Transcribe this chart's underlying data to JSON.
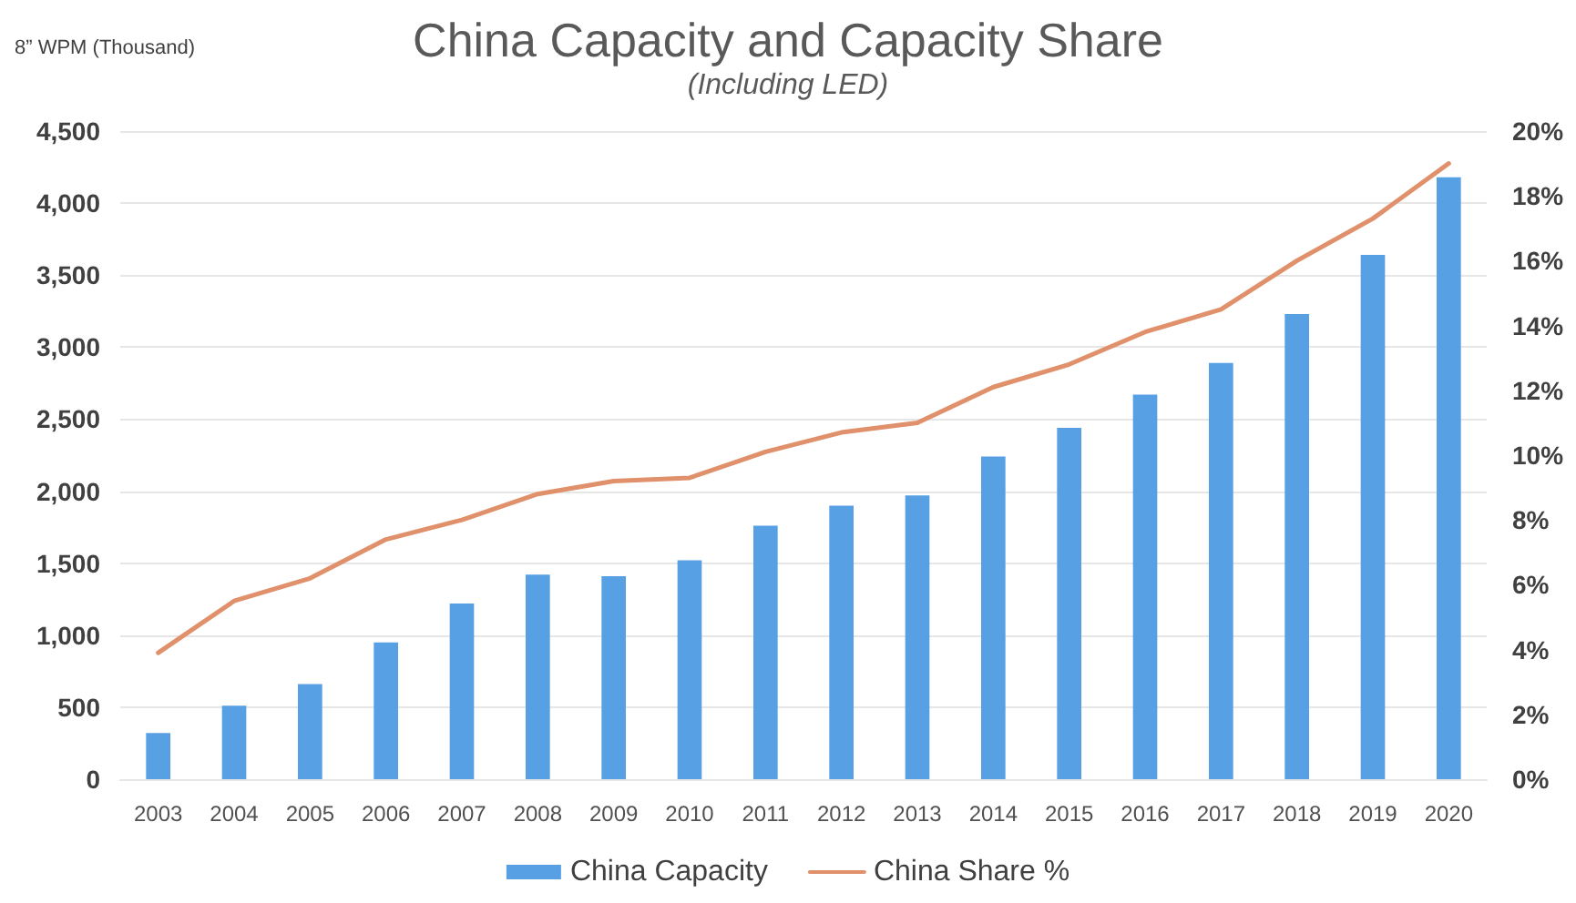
{
  "chart_data": {
    "type": "bar",
    "title": "China Capacity and Capacity Share",
    "subtitle": "(Including LED)",
    "ylabel": "8” WPM (Thousand)",
    "categories": [
      "2003",
      "2004",
      "2005",
      "2006",
      "2007",
      "2008",
      "2009",
      "2010",
      "2011",
      "2012",
      "2013",
      "2014",
      "2015",
      "2016",
      "2017",
      "2018",
      "2019",
      "2020"
    ],
    "series": [
      {
        "name": "China Capacity",
        "color": "#56a0e3",
        "values": [
          320,
          510,
          660,
          950,
          1220,
          1420,
          1410,
          1520,
          1760,
          1900,
          1970,
          2240,
          2440,
          2670,
          2890,
          3230,
          3640,
          4180
        ]
      },
      {
        "name": "China Share %",
        "type": "line",
        "axis": "y2",
        "color": "#e0906a",
        "values": [
          3.9,
          5.5,
          6.2,
          7.4,
          8.0,
          8.8,
          9.2,
          9.3,
          10.1,
          10.7,
          11.0,
          12.1,
          12.8,
          13.8,
          14.5,
          16.0,
          17.3,
          19.0
        ]
      }
    ],
    "ylim": [
      0,
      4500
    ],
    "yticks": [
      0,
      500,
      {
        "value": 1000,
        "label": "1,000"
      },
      {
        "value": 1500,
        "label": "1,500"
      },
      {
        "value": 2000,
        "label": "2,000"
      },
      {
        "value": 2500,
        "label": "2,500"
      },
      {
        "value": 3000,
        "label": "3,000"
      },
      {
        "value": 3500,
        "label": "3,500"
      },
      {
        "value": 4000,
        "label": "4,000"
      },
      {
        "value": 4500,
        "label": "4,500"
      }
    ],
    "y2lim": [
      0,
      20
    ],
    "y2ticks": [
      {
        "value": 0,
        "label": "0%"
      },
      {
        "value": 2,
        "label": "2%"
      },
      {
        "value": 4,
        "label": "4%"
      },
      {
        "value": 6,
        "label": "6%"
      },
      {
        "value": 8,
        "label": "8%"
      },
      {
        "value": 10,
        "label": "10%"
      },
      {
        "value": 12,
        "label": "12%"
      },
      {
        "value": 14,
        "label": "14%"
      },
      {
        "value": 16,
        "label": "16%"
      },
      {
        "value": 18,
        "label": "18%"
      },
      {
        "value": 20,
        "label": "20%"
      }
    ],
    "grid": "y",
    "legend": "bottom"
  }
}
